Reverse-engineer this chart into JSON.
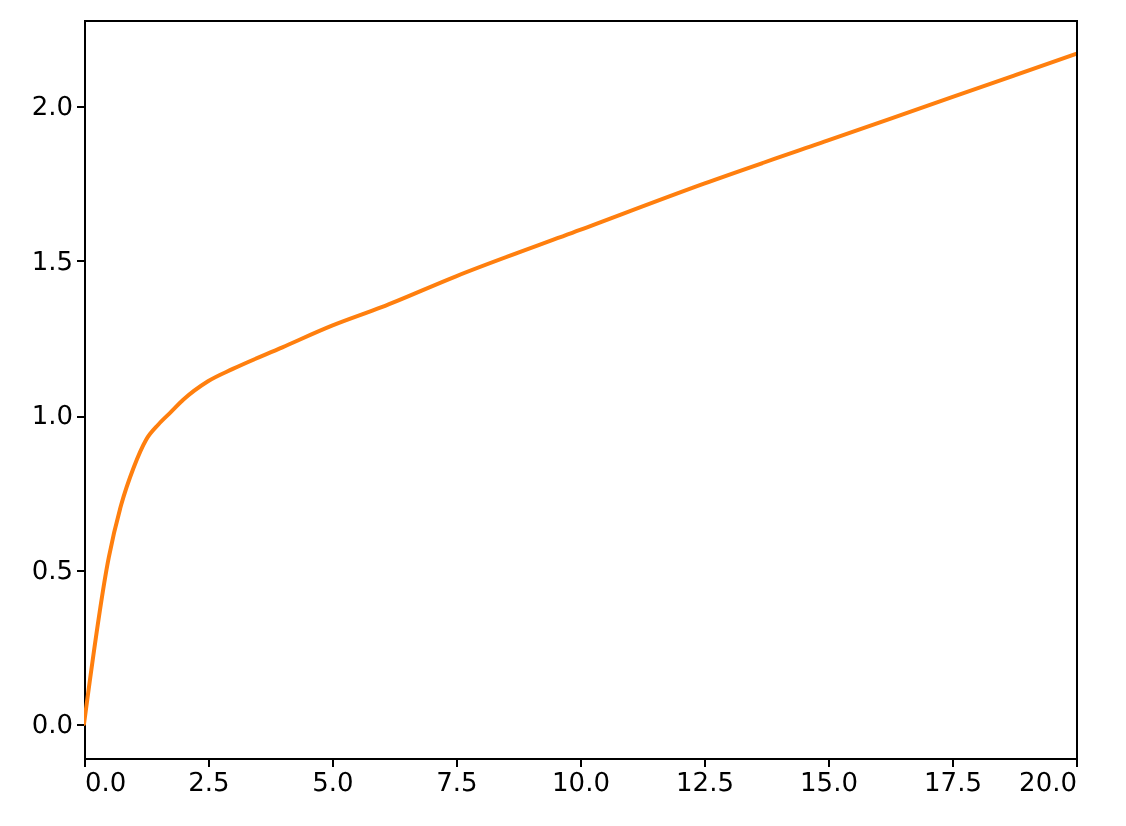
{
  "chart_data": {
    "type": "line",
    "x": [
      0,
      0.5,
      0.75,
      1,
      1.25,
      1.5,
      1.75,
      2,
      2.5,
      3,
      4,
      5,
      6,
      7.5,
      10,
      12.5,
      15,
      17.5,
      20
    ],
    "series": [
      {
        "color": "#ff7f0e",
        "values": [
          0,
          0.54,
          0.71,
          0.83,
          0.92,
          0.97,
          1.01,
          1.05,
          1.11,
          1.15,
          1.22,
          1.29,
          1.35,
          1.45,
          1.6,
          1.75,
          1.89,
          2.03,
          2.17
        ]
      }
    ],
    "xlim": [
      0,
      20
    ],
    "ylim": [
      -0.11,
      2.28
    ],
    "xticks": [
      {
        "value": 0,
        "label": "0.0"
      },
      2.5,
      {
        "value": 5,
        "label": "5.0"
      },
      7.5,
      {
        "value": 10,
        "label": "10.0"
      },
      12.5,
      {
        "value": 15,
        "label": "15.0"
      },
      17.5,
      {
        "value": 20,
        "label": "20.0"
      }
    ],
    "yticks": [
      {
        "value": 0,
        "label": "0.0"
      },
      0.5,
      {
        "value": 1,
        "label": "1.0"
      },
      1.5,
      {
        "value": 2,
        "label": "2.0"
      }
    ]
  }
}
